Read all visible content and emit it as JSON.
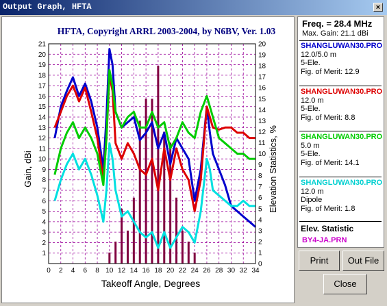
{
  "window": {
    "title": "Output Graph, HFTA",
    "close_glyph": "×"
  },
  "chart_data": {
    "type": "line",
    "title": "HFTA, Copyright ARRL 2003-2004, by N6BV, Ver. 1.03",
    "xlabel": "Takeoff Angle, Degrees",
    "ylabel": "Gain, dBi",
    "y2label": "Elevation Statistics, %",
    "xlim": [
      0,
      34
    ],
    "ylim": [
      0,
      21
    ],
    "y2lim": [
      0,
      20
    ],
    "xticks": [
      "0",
      "2",
      "4",
      "6",
      "8",
      "10",
      "12",
      "14",
      "16",
      "18",
      "20",
      "22",
      "24",
      "26",
      "28",
      "30",
      "32",
      "34"
    ],
    "yticks": [
      "1",
      "2",
      "3",
      "4",
      "5",
      "6",
      "7",
      "8",
      "9",
      "10",
      "11",
      "12",
      "13",
      "14",
      "15",
      "16",
      "17",
      "18",
      "19",
      "20",
      "21"
    ],
    "y2ticks": [
      "0",
      "1",
      "2",
      "3",
      "4",
      "5",
      "6",
      "7",
      "8",
      "9",
      "10",
      "11",
      "12",
      "13",
      "14",
      "15",
      "16",
      "17",
      "18",
      "19",
      "20"
    ],
    "grid": true,
    "series": [
      {
        "name": "SHANGLUWAN30.PRO",
        "color": "#0000cc",
        "x": [
          1,
          2,
          3,
          4,
          5,
          6,
          7,
          8,
          9,
          9.5,
          10,
          10.5,
          11,
          12,
          13,
          14,
          15,
          16,
          17,
          18,
          19,
          20,
          21,
          22,
          23,
          24,
          25,
          26,
          26.5,
          27,
          28,
          29,
          30,
          31,
          32,
          33,
          34
        ],
        "y": [
          12,
          15,
          16.5,
          17.8,
          16,
          17.2,
          15.5,
          13,
          9,
          14,
          20.5,
          19,
          14.5,
          13,
          13.5,
          14,
          11.8,
          12.5,
          13.5,
          11,
          12.5,
          9.5,
          12,
          11,
          10,
          6,
          9,
          15,
          12.5,
          10.5,
          9,
          7.5,
          5.5,
          5,
          4.5,
          4,
          3.5
        ]
      },
      {
        "name": "SHANGLUWAN30.PRO",
        "color": "#dd0000",
        "x": [
          1,
          2,
          3,
          4,
          5,
          6,
          7,
          8,
          9,
          9.5,
          10,
          10.5,
          11,
          12,
          13,
          14,
          15,
          16,
          17,
          18,
          19,
          20,
          21,
          22,
          23,
          24,
          25,
          26,
          26.5,
          27,
          28,
          29,
          30,
          31,
          32,
          33,
          34
        ],
        "y": [
          13,
          14.5,
          16,
          17,
          15.5,
          16.8,
          14.5,
          12,
          8,
          12,
          18,
          16.5,
          11.5,
          10,
          11.5,
          10.5,
          9,
          8.5,
          10,
          7,
          11,
          8,
          11,
          9,
          8,
          5,
          8,
          15,
          14,
          13,
          12.8,
          13,
          13,
          12.5,
          12.5,
          12,
          12
        ]
      },
      {
        "name": "SHANGLUWAN30.PRO",
        "color": "#00cc00",
        "x": [
          1,
          2,
          3,
          4,
          5,
          6,
          7,
          8,
          9,
          9.5,
          10,
          10.5,
          11,
          12,
          13,
          14,
          15,
          16,
          17,
          18,
          19,
          20,
          21,
          22,
          23,
          24,
          25,
          26,
          26.5,
          27,
          28,
          29,
          30,
          31,
          32,
          33,
          34
        ],
        "y": [
          8.5,
          11,
          12.5,
          13.5,
          12,
          13,
          12,
          10.5,
          7.5,
          12,
          18.5,
          17,
          14.5,
          13,
          14,
          14.5,
          13,
          13,
          14.5,
          13,
          13.5,
          11,
          12,
          13.5,
          12.5,
          12,
          14.5,
          16,
          15,
          14,
          12,
          11.5,
          11,
          10.5,
          10.5,
          10,
          10
        ]
      },
      {
        "name": "SHANGLUWAN30.PRO",
        "color": "#00e0e0",
        "x": [
          1,
          2,
          3,
          4,
          5,
          6,
          7,
          8,
          9,
          9.5,
          10,
          10.5,
          11,
          12,
          13,
          14,
          15,
          16,
          17,
          18,
          19,
          20,
          21,
          22,
          23,
          24,
          25,
          26,
          26.5,
          27,
          28,
          29,
          30,
          31,
          32,
          33,
          34
        ],
        "y": [
          6,
          8,
          9.5,
          10.5,
          9,
          10,
          8.5,
          6.5,
          4,
          7,
          11.5,
          10,
          7,
          4.5,
          5,
          4,
          3,
          2.5,
          3,
          1.5,
          3,
          1.5,
          2.5,
          3.5,
          3,
          2,
          5,
          10,
          9,
          7,
          6.5,
          6,
          5.5,
          5.5,
          6,
          5.5,
          5.5
        ]
      }
    ],
    "bars": {
      "name": "BY4-JA.PRN",
      "color": "#800040",
      "x": [
        10,
        11,
        12,
        13,
        14,
        15,
        16,
        17,
        18,
        19,
        20,
        21,
        22,
        23,
        24
      ],
      "values": [
        1,
        2,
        5,
        3,
        6,
        13,
        15,
        15,
        18,
        12,
        11,
        6,
        3,
        2,
        1
      ]
    }
  },
  "panel": {
    "freq": "Freq. = 28.4 MHz",
    "max_gain": "Max. Gain: 21.1 dBi",
    "entries": [
      {
        "name": "SHANGLUWAN30.PRO",
        "color": "#0000cc",
        "height": "12.0/5.0 m",
        "type": "5-Ele.",
        "fom": "Fig. of Merit:  12.9"
      },
      {
        "name": "SHANGLUWAN30.PRO",
        "color": "#dd0000",
        "height": "12.0 m",
        "type": "5-Ele.",
        "fom": "Fig. of Merit:  8.8"
      },
      {
        "name": "SHANGLUWAN30.PRO",
        "color": "#00cc00",
        "height": "5.0 m",
        "type": "5-Ele.",
        "fom": "Fig. of Merit:  14.1"
      },
      {
        "name": "SHANGLUWAN30.PRO",
        "color": "#00e0e0",
        "height": "12.0 m",
        "type": "Dipole",
        "fom": "Fig. of Merit:  1.8"
      }
    ],
    "elev_title": "Elev. Statistic",
    "elev_file": "BY4-JA.PRN",
    "buttons": {
      "print": "Print",
      "outfile": "Out File",
      "close": "Close"
    }
  }
}
